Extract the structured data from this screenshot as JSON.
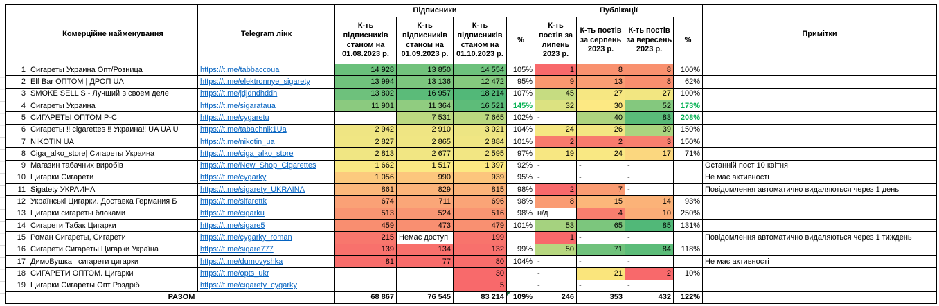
{
  "colors": {
    "link": "#0563C1",
    "green_text": "#00B050",
    "border": "#000000",
    "triangle": "#217346"
  },
  "header": {
    "name": "Комерційне найменування",
    "link": "Telegram лінк",
    "subscribers_group": "Підписники",
    "publications_group": "Публікації",
    "notes": "Примітки",
    "sub_cols": [
      "К-ть підписників станом на 01.08.2023 р.",
      "К-ть підписників станом на 01.09.2023 р.",
      "К-ть підписників станом на 01.10.2023 р.",
      "%"
    ],
    "pub_cols": [
      "К-ть постів за липень 2023 р.",
      "К-ть постів за серпень 2023 р.",
      "К-ть постів за вересень 2023 р.",
      "%"
    ]
  },
  "rows": [
    {
      "num": "1",
      "name": "Сигареты Украина Опт/Розница",
      "link": "https://t.me/tabbaccoua",
      "cells": [
        {
          "v": "14 928",
          "bg": "#6AC07B"
        },
        {
          "v": "13 850",
          "bg": "#72C27C"
        },
        {
          "v": "14 554",
          "bg": "#6DC17C"
        },
        {
          "v": "105%"
        },
        {
          "v": "1",
          "bg": "#F8696B"
        },
        {
          "v": "8",
          "bg": "#F9916F"
        },
        {
          "v": "8",
          "bg": "#F9916F"
        },
        {
          "v": "100%"
        }
      ],
      "note": ""
    },
    {
      "num": "2",
      "name": "Elf Bar ОПТОМ | ДРОП UA",
      "link": "https://t.me/elektronnye_sigarety",
      "cells": [
        {
          "v": "13 994",
          "bg": "#70C27C"
        },
        {
          "v": "13 136",
          "bg": "#7CC67E"
        },
        {
          "v": "12 472",
          "bg": "#85C97E"
        },
        {
          "v": "95%"
        },
        {
          "v": "9",
          "bg": "#F9976F"
        },
        {
          "v": "13",
          "bg": "#FA9D73"
        },
        {
          "v": "8",
          "bg": "#F98E6E"
        },
        {
          "v": "62%"
        }
      ],
      "note": ""
    },
    {
      "num": "3",
      "name": "SMOKE SELL S - Лучший в своем деле",
      "link": "https://t.me/jdjdndhddh",
      "cells": [
        {
          "v": "13 802",
          "bg": "#6EC17C"
        },
        {
          "v": "16 957",
          "bg": "#5BBB79"
        },
        {
          "v": "18 214",
          "bg": "#52B878"
        },
        {
          "v": "107%"
        },
        {
          "v": "45",
          "bg": "#C6DC81"
        },
        {
          "v": "27",
          "bg": "#F6E782"
        },
        {
          "v": "27",
          "bg": "#F2E681"
        },
        {
          "v": "100%"
        }
      ],
      "note": ""
    },
    {
      "num": "4",
      "name": "Сигареты Украина",
      "link": "https://t.me/sigarataua",
      "cells": [
        {
          "v": "11 901",
          "bg": "#8BCA7F"
        },
        {
          "v": "11 364",
          "bg": "#90CC80"
        },
        {
          "v": "16 521",
          "bg": "#5DBC79"
        },
        {
          "v": "145%",
          "g": true
        },
        {
          "v": "32",
          "bg": "#DCE281"
        },
        {
          "v": "30",
          "bg": "#FDE983"
        },
        {
          "v": "52",
          "bg": "#84C87E"
        },
        {
          "v": "173%",
          "g": true
        }
      ],
      "note": ""
    },
    {
      "num": "5",
      "name": "СИГАРЕТЫ ОПТОМ Р-С",
      "link": "https://t.me/cygaretu",
      "cells": [
        {
          "v": ""
        },
        {
          "v": "7 531",
          "bg": "#BCD981"
        },
        {
          "v": "7 665",
          "bg": "#BAD880"
        },
        {
          "v": "102%"
        },
        {
          "v": "-",
          "l": true
        },
        {
          "v": "40",
          "bg": "#AED47F"
        },
        {
          "v": "83",
          "bg": "#5ABB79"
        },
        {
          "v": "208%",
          "g": true
        }
      ],
      "note": ""
    },
    {
      "num": "6",
      "name": "Сигареты ‼ cigarettes ‼ Украина‼ UA UA U",
      "link": "https://t.me/tabachnik1Ua",
      "cells": [
        {
          "v": "2 942",
          "bg": "#EFE583"
        },
        {
          "v": "2 910",
          "bg": "#EFE583"
        },
        {
          "v": "3 021",
          "bg": "#EDE583"
        },
        {
          "v": "104%"
        },
        {
          "v": "24",
          "bg": "#F5E782"
        },
        {
          "v": "26",
          "bg": "#F3E682"
        },
        {
          "v": "39",
          "bg": "#ABD47F"
        },
        {
          "v": "150%"
        }
      ],
      "note": ""
    },
    {
      "num": "7",
      "name": "NIKOTIN UA",
      "link": "https://t.me/nikotin_ua",
      "cells": [
        {
          "v": "2 827",
          "bg": "#F0E683"
        },
        {
          "v": "2 865",
          "bg": "#F0E683"
        },
        {
          "v": "2 884",
          "bg": "#F0E683"
        },
        {
          "v": "101%"
        },
        {
          "v": "2",
          "bg": "#F87A6D"
        },
        {
          "v": "2",
          "bg": "#F87A6D"
        },
        {
          "v": "3",
          "bg": "#F87F6E"
        },
        {
          "v": "150%"
        }
      ],
      "note": ""
    },
    {
      "num": "8",
      "name": "Ciga_alko_store| Сигареты Украина",
      "link": "https://t.me/ciga_alko_store",
      "cells": [
        {
          "v": "2 813",
          "bg": "#F0E683"
        },
        {
          "v": "2 677",
          "bg": "#F1E683"
        },
        {
          "v": "2 595",
          "bg": "#F2E683"
        },
        {
          "v": "97%"
        },
        {
          "v": "19",
          "bg": "#F7E782"
        },
        {
          "v": "24",
          "bg": "#F9E883"
        },
        {
          "v": "17",
          "bg": "#FBD77F"
        },
        {
          "v": "71%"
        }
      ],
      "note": ""
    },
    {
      "num": "9",
      "name": "Магазин табачних виробів",
      "link": "https://t.me/New_Shop_Cigarettes",
      "cells": [
        {
          "v": "1 662",
          "bg": "#FAE983"
        },
        {
          "v": "1 517",
          "bg": "#FBE983"
        },
        {
          "v": "1 397",
          "bg": "#FCE982"
        },
        {
          "v": "92%"
        },
        {
          "v": "-",
          "l": true
        },
        {
          "v": "-",
          "l": true
        },
        {
          "v": "-",
          "l": true
        },
        {
          "v": ""
        }
      ],
      "note": "Останній пост 10 квітня"
    },
    {
      "num": "10",
      "name": "Цигарки Сигарети",
      "link": "https://t.me/cygarky",
      "cells": [
        {
          "v": "1 056",
          "bg": "#FCCA7E"
        },
        {
          "v": "990",
          "bg": "#FCC67D"
        },
        {
          "v": "939",
          "bg": "#FCC57D"
        },
        {
          "v": "95%"
        },
        {
          "v": "-",
          "l": true
        },
        {
          "v": "-",
          "l": true
        },
        {
          "v": "-",
          "l": true
        },
        {
          "v": ""
        }
      ],
      "note": "Не має активності"
    },
    {
      "num": "11",
      "name": "Sigatety УКРАИНА",
      "link": "https://t.me/sigarety_UKRAINA",
      "cells": [
        {
          "v": "861",
          "bg": "#FBB87B"
        },
        {
          "v": "829",
          "bg": "#FBB47A"
        },
        {
          "v": "815",
          "bg": "#FBB37A"
        },
        {
          "v": "98%"
        },
        {
          "v": "2",
          "bg": "#F8696B"
        },
        {
          "v": "7",
          "bg": "#FA9B72"
        },
        {
          "v": "-",
          "l": true
        },
        {
          "v": ""
        }
      ],
      "note": "Повідомлення автоматично видаляються через 1 день"
    },
    {
      "num": "12",
      "name": "Українські Цигарки. Доставка Германия Б",
      "link": "https://t.me/sifarettk",
      "cells": [
        {
          "v": "674",
          "bg": "#FAA176"
        },
        {
          "v": "711",
          "bg": "#FAA678"
        },
        {
          "v": "696",
          "bg": "#FAA477"
        },
        {
          "v": "98%"
        },
        {
          "v": "8",
          "bg": "#FA9B72"
        },
        {
          "v": "15",
          "bg": "#FCB67A"
        },
        {
          "v": "14",
          "bg": "#FBB278"
        },
        {
          "v": "93%"
        }
      ],
      "note": ""
    },
    {
      "num": "13",
      "name": "Цигарки сигареты блоками",
      "link": "https://t.me/cigarku",
      "cells": [
        {
          "v": "513",
          "bg": "#F99572"
        },
        {
          "v": "524",
          "bg": "#F99673"
        },
        {
          "v": "516",
          "bg": "#F99572"
        },
        {
          "v": "98%"
        },
        {
          "v": "н/д",
          "l": true
        },
        {
          "v": "4",
          "bg": "#F97E6E"
        },
        {
          "v": "10",
          "bg": "#FBAC77"
        },
        {
          "v": "250%"
        }
      ],
      "note": ""
    },
    {
      "num": "14",
      "name": "Сигарети Табак Цигарки",
      "link": "https://t.me/sigare5",
      "cells": [
        {
          "v": "459",
          "bg": "#F98E70"
        },
        {
          "v": "473",
          "bg": "#F98F71"
        },
        {
          "v": "479",
          "bg": "#F99071"
        },
        {
          "v": "101%"
        },
        {
          "v": "53",
          "bg": "#A5D27F"
        },
        {
          "v": "65",
          "bg": "#7CC67D"
        },
        {
          "v": "85",
          "bg": "#51B878"
        },
        {
          "v": "131%"
        }
      ],
      "note": ""
    },
    {
      "num": "15",
      "name": "Роман Сигареты, Сигарети",
      "link": "https://t.me/cygarky_roman",
      "cells": [
        {
          "v": "215",
          "bg": "#F8776D"
        },
        {
          "v": "Немає доступ",
          "l": true
        },
        {
          "v": "199",
          "bg": "#F8746C"
        },
        {
          "v": ""
        },
        {
          "v": "1",
          "bg": "#F8696B"
        },
        {
          "v": "-",
          "l": true
        },
        {
          "v": "-",
          "l": true
        },
        {
          "v": ""
        }
      ],
      "note": "Повідомлення автоматично видаляються через 1 тиждень"
    },
    {
      "num": "16",
      "name": "Сигарети Сигареты Цигарки Україна",
      "link": "https://t.me/sigare777",
      "cells": [
        {
          "v": "139",
          "bg": "#F8716C"
        },
        {
          "v": "134",
          "bg": "#F8706C"
        },
        {
          "v": "132",
          "bg": "#F8706C"
        },
        {
          "v": "99%"
        },
        {
          "v": "50",
          "bg": "#B7D780"
        },
        {
          "v": "71",
          "bg": "#70C27C"
        },
        {
          "v": "84",
          "bg": "#5CBC79"
        },
        {
          "v": "118%"
        }
      ],
      "note": ""
    },
    {
      "num": "17",
      "name": "ДимоВушка | сигарети цигарки",
      "link": "https://t.me/dumovyshka",
      "cells": [
        {
          "v": "81",
          "bg": "#F86D6B"
        },
        {
          "v": "77",
          "bg": "#F86C6B"
        },
        {
          "v": "80",
          "bg": "#F86D6B"
        },
        {
          "v": "104%"
        },
        {
          "v": "-",
          "l": true
        },
        {
          "v": "-",
          "l": true
        },
        {
          "v": "-",
          "l": true
        },
        {
          "v": ""
        }
      ],
      "note": "Не має активності"
    },
    {
      "num": "18",
      "name": "СИГАРЕТИ ОПТОМ. Цигарки",
      "link": "https://t.me/opts_ukr",
      "cells": [
        {
          "v": ""
        },
        {
          "v": ""
        },
        {
          "v": "30",
          "bg": "#F86A6B"
        },
        {
          "v": ""
        },
        {
          "v": "-",
          "l": true
        },
        {
          "v": "21",
          "bg": "#FAE57C"
        },
        {
          "v": "2",
          "bg": "#F8696B"
        },
        {
          "v": "10%"
        }
      ],
      "note": ""
    },
    {
      "num": "19",
      "name": "Цигарки Сигареты Опт Роздріб",
      "link": "https://t.me/cigarety_cygarky",
      "cells": [
        {
          "v": ""
        },
        {
          "v": ""
        },
        {
          "v": "5",
          "bg": "#F8696B"
        },
        {
          "v": ""
        },
        {
          "v": "-",
          "l": true
        },
        {
          "v": "-",
          "l": true
        },
        {
          "v": "-",
          "l": true
        },
        {
          "v": ""
        }
      ],
      "note": ""
    }
  ],
  "total": {
    "label": "РАЗОМ",
    "cells": [
      {
        "v": "68 867"
      },
      {
        "v": "76 545"
      },
      {
        "v": "83 214"
      },
      {
        "v": "109%",
        "tri": true
      },
      {
        "v": "246"
      },
      {
        "v": "353"
      },
      {
        "v": "432"
      },
      {
        "v": "122%"
      }
    ],
    "note": ""
  }
}
